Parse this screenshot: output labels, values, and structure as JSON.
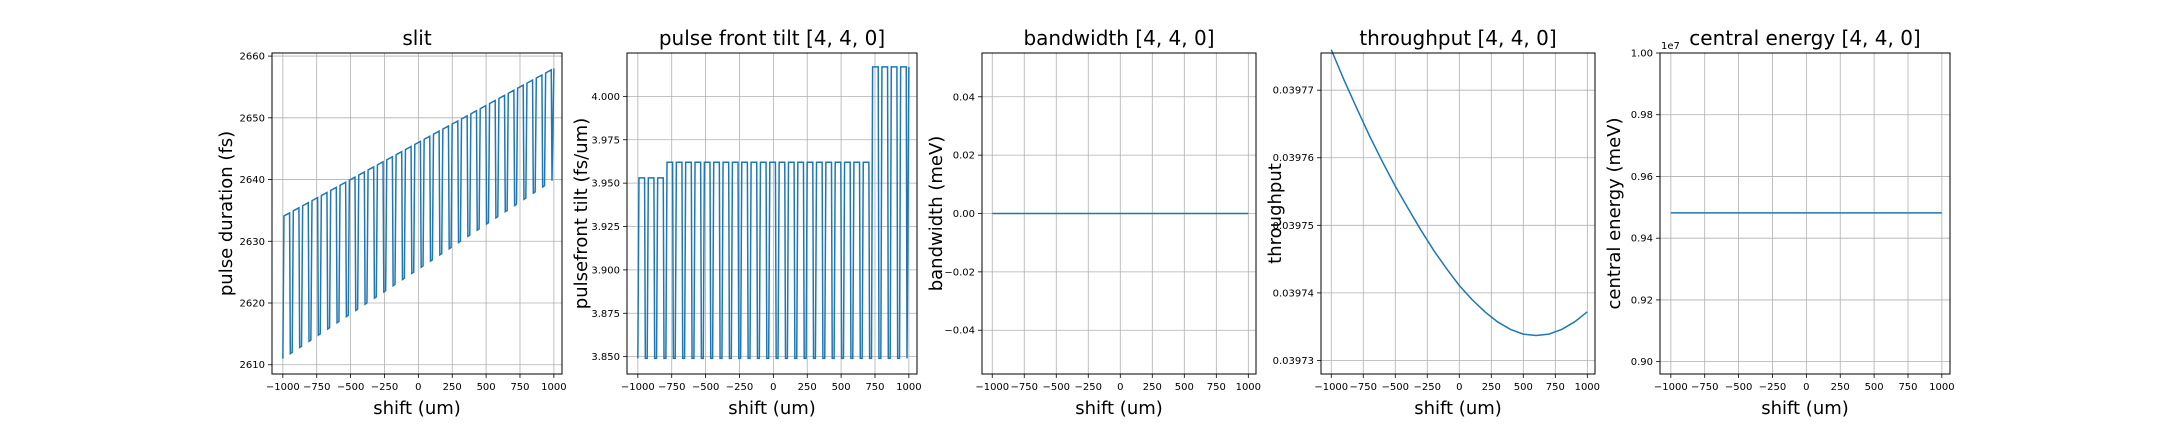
{
  "chart_data": [
    {
      "type": "line",
      "title": "slit",
      "xlabel": "shift (um)",
      "ylabel": "pulse duration (fs)",
      "xlim": [
        -1080,
        1060
      ],
      "ylim": [
        2608.5,
        2660.5
      ],
      "x_ticks": [
        -1000,
        -750,
        -500,
        -250,
        0,
        250,
        500,
        750,
        1000
      ],
      "y_ticks": [
        2610,
        2620,
        2630,
        2640,
        2650,
        2660
      ],
      "grid": true,
      "color": "#1f77b4",
      "series_pattern": {
        "kind": "square-oscillation",
        "x_start": -1000,
        "x_end": 1000,
        "cycles": 29,
        "low_start": 2611,
        "low_end": 2640,
        "high_start": 2634,
        "high_end": 2658
      }
    },
    {
      "type": "line",
      "title": "pulse front tilt [4, 4, 0]",
      "xlabel": "shift (um)",
      "ylabel": "pulsefront tilt (fs/um)",
      "xlim": [
        -1080,
        1060
      ],
      "ylim": [
        3.84,
        4.025
      ],
      "x_ticks": [
        -1000,
        -750,
        -500,
        -250,
        0,
        250,
        500,
        750,
        1000
      ],
      "y_ticks": [
        3.85,
        3.875,
        3.9,
        3.925,
        3.95,
        3.975,
        4.0
      ],
      "y_tick_labels": [
        "3.850",
        "3.875",
        "3.900",
        "3.925",
        "3.950",
        "3.975",
        "4.000"
      ],
      "grid": true,
      "color": "#1f77b4",
      "series_pattern": {
        "kind": "square-oscillation",
        "x_start": -1000,
        "x_end": 1000,
        "cycles": 29,
        "low": 3.849,
        "high_levels": [
          {
            "x_from": -1000,
            "x_to": -800,
            "value": 3.953
          },
          {
            "x_from": -800,
            "x_to": 720,
            "value": 3.962
          },
          {
            "x_from": 720,
            "x_to": 1000,
            "value": 4.017
          }
        ]
      }
    },
    {
      "type": "line",
      "title": "bandwidth [4, 4, 0]",
      "xlabel": "shift (um)",
      "ylabel": "bandwidth (meV)",
      "xlim": [
        -1080,
        1060
      ],
      "ylim": [
        -0.055,
        0.055
      ],
      "x_ticks": [
        -1000,
        -750,
        -500,
        -250,
        0,
        250,
        500,
        750,
        1000
      ],
      "y_ticks": [
        -0.04,
        -0.02,
        0.0,
        0.02,
        0.04
      ],
      "y_tick_labels": [
        "−0.04",
        "−0.02",
        "0.00",
        "0.02",
        "0.04"
      ],
      "grid": true,
      "color": "#1f77b4",
      "x": [
        -1000,
        1000
      ],
      "y": [
        0,
        0
      ]
    },
    {
      "type": "line",
      "title": "throughput [4, 4, 0]",
      "xlabel": "shift (um)",
      "ylabel": "throughput",
      "xlim": [
        -1080,
        1060
      ],
      "ylim": [
        0.039728,
        0.0397755
      ],
      "x_ticks": [
        -1000,
        -750,
        -500,
        -250,
        0,
        250,
        500,
        750,
        1000
      ],
      "y_ticks": [
        0.03973,
        0.03974,
        0.03975,
        0.03976,
        0.03977
      ],
      "y_tick_labels": [
        "0.03973",
        "0.03974",
        "0.03975",
        "0.03976",
        "0.03977"
      ],
      "grid": true,
      "color": "#1f77b4",
      "x": [
        -1000,
        -900,
        -800,
        -700,
        -600,
        -500,
        -400,
        -300,
        -200,
        -100,
        0,
        100,
        200,
        300,
        400,
        500,
        600,
        700,
        800,
        900,
        1000
      ],
      "y": [
        0.039776,
        0.0397715,
        0.0397673,
        0.0397632,
        0.0397594,
        0.0397558,
        0.0397525,
        0.0397493,
        0.0397463,
        0.0397436,
        0.0397411,
        0.039739,
        0.0397372,
        0.0397357,
        0.0397346,
        0.0397339,
        0.0397337,
        0.0397339,
        0.0397346,
        0.0397357,
        0.0397372
      ]
    },
    {
      "type": "line",
      "title": "central energy [4, 4, 0]",
      "xlabel": "shift (um)",
      "ylabel": "central energy (meV)",
      "xlim": [
        -1080,
        1060
      ],
      "ylim": [
        0.896,
        1.0
      ],
      "x_ticks": [
        -1000,
        -750,
        -500,
        -250,
        0,
        250,
        500,
        750,
        1000
      ],
      "y_ticks": [
        0.9,
        0.92,
        0.94,
        0.96,
        0.98,
        1.0
      ],
      "y_tick_labels": [
        "0.90",
        "0.92",
        "0.94",
        "0.96",
        "0.98",
        "1.00"
      ],
      "y_offset_label": "1e7",
      "grid": true,
      "color": "#1f77b4",
      "x": [
        -1000,
        1000
      ],
      "y": [
        0.9482,
        0.9482
      ]
    }
  ],
  "x_tick_labels": [
    "−1000",
    "−750",
    "−500",
    "−250",
    "0",
    "250",
    "500",
    "750",
    "1000"
  ]
}
